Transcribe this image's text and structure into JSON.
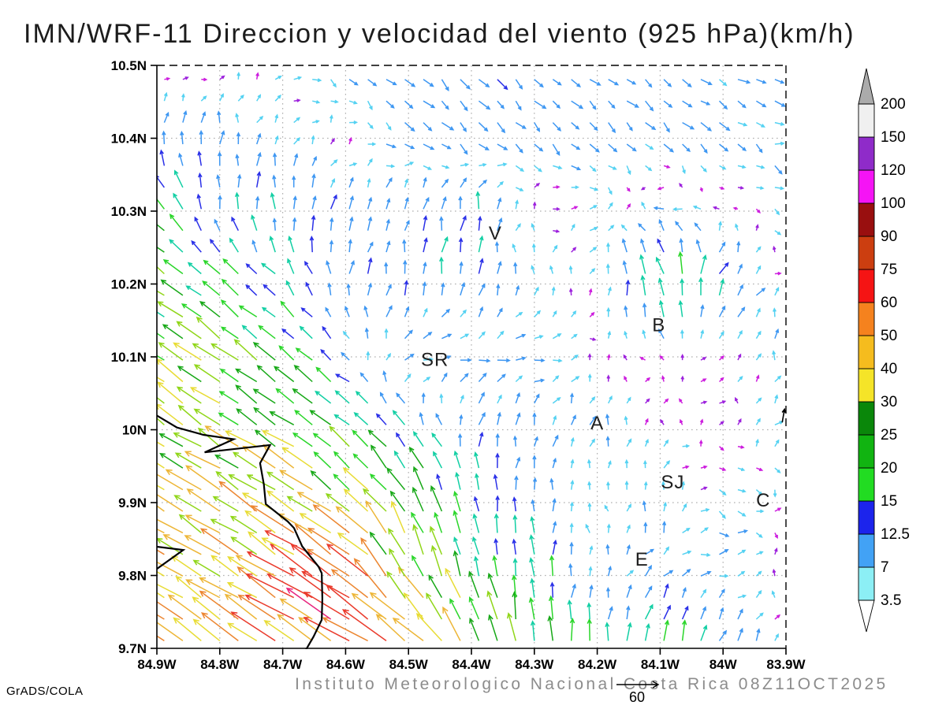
{
  "title": "IMN/WRF-11 Direccion y velocidad del viento (925 hPa)(km/h)",
  "caption": "Instituto Meteorologico Nacional Costa Rica 08Z11OCT2025",
  "credit": "GrADS/COLA",
  "reference_vector": {
    "label": "60"
  },
  "colors": {
    "title": "#1c1c1c",
    "caption": "#8c8c8c",
    "grid": "#b0b0b0",
    "frame": "#000000",
    "coastline": "#000000",
    "station_text": "#1e1e1e"
  },
  "chart_data": {
    "type": "quiver-map",
    "x_axis": {
      "ticks": [
        "84.9W",
        "84.8W",
        "84.7W",
        "84.6W",
        "84.5W",
        "84.4W",
        "84.3W",
        "84.2W",
        "84.1W",
        "84W",
        "83.9W"
      ],
      "lon_min": -84.9,
      "lon_max": -83.9
    },
    "y_axis": {
      "ticks": [
        "10.5N",
        "10.4N",
        "10.3N",
        "10.2N",
        "10.1N",
        "10N",
        "9.9N",
        "9.8N",
        "9.7N"
      ],
      "lat_min": 9.7,
      "lat_max": 10.5
    },
    "grid_interval_deg": 0.1,
    "colorbar": {
      "boundary_labels_top_to_bottom": [
        "200",
        "150",
        "120",
        "100",
        "90",
        "75",
        "60",
        "50",
        "40",
        "30",
        "25",
        "20",
        "15",
        "12.5",
        "7",
        "3.5"
      ],
      "segment_colors_top_to_bottom": [
        "#f0f0f0",
        "#8f2bc9",
        "#f514f5",
        "#990f0f",
        "#cc3e10",
        "#f51414",
        "#f5821e",
        "#f5bc1e",
        "#f5e428",
        "#0a870a",
        "#11b411",
        "#22dc22",
        "#1c24ec",
        "#42a2f5",
        "#8ceff5"
      ],
      "above_triangle_color": "#ababab",
      "below_triangle_color": "#ffffff"
    },
    "station_labels": [
      {
        "text": "V",
        "lon": -84.362,
        "lat": 10.27
      },
      {
        "text": "B",
        "lon": -84.102,
        "lat": 10.144
      },
      {
        "text": "SR",
        "lon": -84.458,
        "lat": 10.096
      },
      {
        "text": "A",
        "lon": -84.2,
        "lat": 10.009
      },
      {
        "text": "SJ",
        "lon": -84.08,
        "lat": 9.928
      },
      {
        "text": "C",
        "lon": -83.936,
        "lat": 9.903
      },
      {
        "text": "E",
        "lon": -84.129,
        "lat": 9.822
      }
    ],
    "coastline": [
      [
        [
          -84.905,
          10.022
        ],
        [
          -84.868,
          10.003
        ],
        [
          -84.826,
          9.993
        ],
        [
          -84.778,
          9.987
        ],
        [
          -84.824,
          9.969
        ],
        [
          -84.72,
          9.979
        ],
        [
          -84.736,
          9.954
        ],
        [
          -84.73,
          9.925
        ],
        [
          -84.727,
          9.898
        ],
        [
          -84.692,
          9.874
        ],
        [
          -84.682,
          9.865
        ],
        [
          -84.669,
          9.84
        ],
        [
          -84.643,
          9.812
        ],
        [
          -84.638,
          9.803
        ],
        [
          -84.637,
          9.768
        ],
        [
          -84.638,
          9.739
        ],
        [
          -84.651,
          9.716
        ],
        [
          -84.663,
          9.698
        ]
      ],
      [
        [
          -84.905,
          9.806
        ],
        [
          -84.858,
          9.835
        ],
        [
          -84.905,
          9.84
        ]
      ]
    ],
    "wind_grid": {
      "lons": [
        -84.9,
        -84.8,
        -84.7,
        -84.6,
        -84.5,
        -84.4,
        -84.3,
        -84.2,
        -84.1,
        -84.0,
        -83.9
      ],
      "lats": [
        9.7,
        9.8,
        9.9,
        10.0,
        10.1,
        10.2,
        10.3,
        10.4,
        10.5
      ],
      "uv_kmh": [
        [
          [
            -38,
            25
          ],
          [
            -40,
            26
          ],
          [
            -44,
            29
          ],
          [
            -52,
            34
          ],
          [
            -42,
            28
          ],
          [
            -12,
            30
          ],
          [
            -2,
            24
          ],
          [
            0,
            18
          ],
          [
            2,
            20
          ],
          [
            5,
            14
          ],
          [
            1,
            3
          ]
        ],
        [
          [
            -35,
            23
          ],
          [
            -37,
            24
          ],
          [
            -42,
            27
          ],
          [
            -50,
            33
          ],
          [
            -14,
            32
          ],
          [
            -6,
            24
          ],
          [
            -2,
            20
          ],
          [
            2,
            6
          ],
          [
            6,
            6
          ],
          [
            7,
            2
          ],
          [
            2,
            2
          ]
        ],
        [
          [
            -34,
            21
          ],
          [
            -34,
            21
          ],
          [
            -38,
            24
          ],
          [
            -24,
            20
          ],
          [
            -16,
            26
          ],
          [
            -3,
            15
          ],
          [
            1,
            10
          ],
          [
            -1,
            3
          ],
          [
            1,
            8
          ],
          [
            6,
            -4
          ],
          [
            3,
            -2
          ]
        ],
        [
          [
            -25,
            17
          ],
          [
            -27,
            18
          ],
          [
            -26,
            17
          ],
          [
            -18,
            15
          ],
          [
            -10,
            12
          ],
          [
            2,
            10
          ],
          [
            2,
            10
          ],
          [
            1,
            8
          ],
          [
            1,
            3
          ],
          [
            2,
            1
          ],
          [
            4,
            4
          ]
        ],
        [
          [
            -24,
            17
          ],
          [
            -26,
            18
          ],
          [
            -18,
            14
          ],
          [
            -7,
            6
          ],
          [
            8,
            2
          ],
          [
            9,
            1
          ],
          [
            9,
            1
          ],
          [
            1,
            2
          ],
          [
            -1,
            2
          ],
          [
            2,
            3
          ],
          [
            1,
            7
          ]
        ],
        [
          [
            -21,
            15
          ],
          [
            -16,
            13
          ],
          [
            -10,
            10
          ],
          [
            1,
            12
          ],
          [
            2,
            12
          ],
          [
            1,
            12
          ],
          [
            0,
            6
          ],
          [
            2,
            4
          ],
          [
            -8,
            26
          ],
          [
            8,
            12
          ],
          [
            -1,
            3
          ]
        ],
        [
          [
            -18,
            17
          ],
          [
            0,
            12
          ],
          [
            0,
            14
          ],
          [
            6,
            10
          ],
          [
            2,
            10
          ],
          [
            1,
            16
          ],
          [
            2,
            2
          ],
          [
            4,
            3
          ],
          [
            -7,
            3
          ],
          [
            -2,
            2
          ],
          [
            5,
            -4
          ]
        ],
        [
          [
            1,
            10
          ],
          [
            1,
            12
          ],
          [
            2,
            6
          ],
          [
            3,
            1
          ],
          [
            7,
            -7
          ],
          [
            8,
            -8
          ],
          [
            7,
            -7
          ],
          [
            7,
            -7
          ],
          [
            7,
            -7
          ],
          [
            7,
            -6
          ],
          [
            8,
            -2
          ]
        ],
        [
          [
            2,
            -1
          ],
          [
            3,
            -2
          ],
          [
            4,
            0
          ],
          [
            6,
            -6
          ],
          [
            7,
            -7
          ],
          [
            7,
            -7
          ],
          [
            7,
            -7
          ],
          [
            7,
            -6
          ],
          [
            7,
            -7
          ],
          [
            8,
            -3
          ],
          [
            8,
            -2
          ]
        ]
      ]
    },
    "arrow_palette": {
      "calm_colors": [
        "#9d22dd",
        "#cd1ede"
      ],
      "stops": [
        [
          7,
          "#55d2f2"
        ],
        [
          12.5,
          "#3e97f2"
        ],
        [
          15,
          "#2a30e8"
        ],
        [
          20,
          "#12cfa4"
        ],
        [
          25,
          "#2ad62a"
        ],
        [
          30,
          "#17a817"
        ],
        [
          35,
          "#90d619"
        ],
        [
          42,
          "#e8dc35"
        ],
        [
          50,
          "#edb637"
        ],
        [
          58,
          "#ec8630"
        ],
        [
          72,
          "#ea3b2c"
        ],
        [
          9999,
          "#e8247e"
        ]
      ]
    },
    "extra_marks": [
      {
        "type": "black-arrow",
        "lon": -83.906,
        "lat": 10.01,
        "angle_deg": 80,
        "len": 17
      }
    ]
  }
}
